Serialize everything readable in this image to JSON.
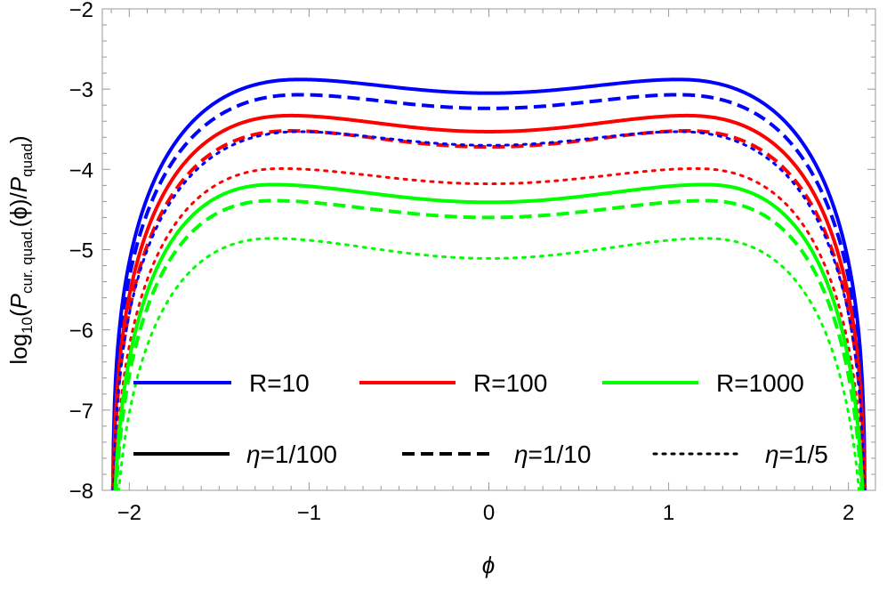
{
  "chart_data": {
    "type": "line",
    "xlabel": "ϕ",
    "ylabel": "log10(Pcur. quad.(ϕ)/Pquad)",
    "ylabel_parts": {
      "main": "log",
      "main_sub": "10",
      "open": "(",
      "p1": "P",
      "p1_sub": "cur. quad.",
      "arg": "(ϕ)/",
      "p2": "P",
      "p2_sub": "quad",
      "close": ")"
    },
    "xlim": [
      -2.15,
      2.15
    ],
    "ylim": [
      -8,
      -2
    ],
    "xticks": [
      -2,
      -1,
      0,
      1,
      2
    ],
    "xtick_labels": [
      "−2",
      "−1",
      "0",
      "1",
      "2"
    ],
    "yticks": [
      -2,
      -3,
      -4,
      -5,
      -6,
      -7,
      -8
    ],
    "ytick_labels": [
      "−2",
      "−3",
      "−4",
      "−5",
      "−6",
      "−7",
      "−8"
    ],
    "grid": false,
    "legend_placement": "bottom",
    "legend": {
      "colors": [
        {
          "label": "R=10",
          "color": "#0000ff"
        },
        {
          "label": "R=100",
          "color": "#ff0000"
        },
        {
          "label": "R=1000",
          "color": "#00ff00"
        }
      ],
      "styles": [
        {
          "label": "η=1/100",
          "dash": "solid"
        },
        {
          "label": "η=1/10",
          "dash": "dashed"
        },
        {
          "label": "η=1/5",
          "dash": "dotted"
        }
      ]
    },
    "x_edge": 2.094,
    "series": [
      {
        "color": "#0000ff",
        "dash": "solid",
        "center": -3.05,
        "peak": -2.88,
        "peak_x": 1.05
      },
      {
        "color": "#0000ff",
        "dash": "dashed",
        "center": -3.24,
        "peak": -3.07,
        "peak_x": 1.05
      },
      {
        "color": "#ff0000",
        "dash": "solid",
        "center": -3.53,
        "peak": -3.33,
        "peak_x": 1.1
      },
      {
        "color": "#ff0000",
        "dash": "dashed",
        "center": -3.72,
        "peak": -3.52,
        "peak_x": 1.1
      },
      {
        "color": "#0000ff",
        "dash": "dotted",
        "center": -3.7,
        "peak": -3.53,
        "peak_x": 1.05
      },
      {
        "color": "#ff0000",
        "dash": "dotted",
        "center": -4.18,
        "peak": -3.99,
        "peak_x": 1.15
      },
      {
        "color": "#00ff00",
        "dash": "solid",
        "center": -4.41,
        "peak": -4.19,
        "peak_x": 1.2
      },
      {
        "color": "#00ff00",
        "dash": "dashed",
        "center": -4.6,
        "peak": -4.39,
        "peak_x": 1.2
      },
      {
        "color": "#00ff00",
        "dash": "dotted",
        "center": -5.11,
        "peak": -4.86,
        "peak_x": 1.2
      }
    ]
  }
}
